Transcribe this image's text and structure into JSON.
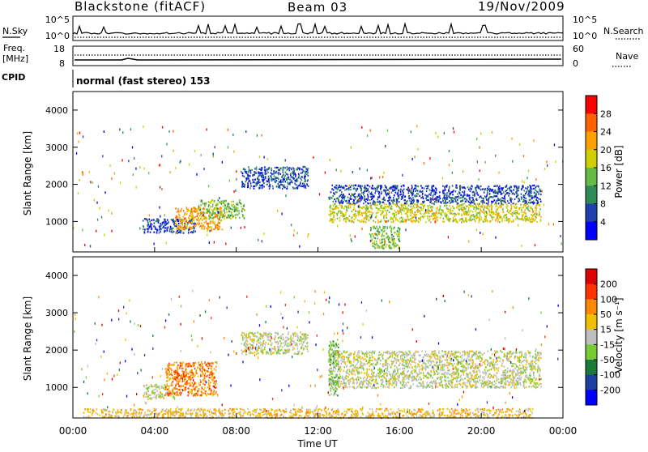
{
  "header": {
    "station": "Blackstone (fitACF)",
    "beam": "Beam 03",
    "date": "19/Nov/2009"
  },
  "top_panels": {
    "nsky_label": "N.Sky",
    "nsky_ticks": [
      "10^5",
      "10^0"
    ],
    "nsearch_label": "N.Search",
    "nsearch_ticks": [
      "10^5",
      "10^0"
    ],
    "freq_label": "Freq.",
    "freq_unit": "[MHz]",
    "freq_ticks": [
      "18",
      "8"
    ],
    "nave_label": "Nave",
    "nave_ticks": [
      "60",
      "0"
    ],
    "cpid_label": "CPID",
    "cpid_text": "normal (fast stereo) 153"
  },
  "chart_data": [
    {
      "type": "heatmap",
      "name": "power",
      "ylabel": "Slant Range [km]",
      "yticks": [
        "4000",
        "3000",
        "2000",
        "1000"
      ],
      "ylim": [
        180,
        4500
      ],
      "xlim": [
        0,
        24
      ],
      "colorbar_label": "Power [dB]",
      "colorbar_ticks": [
        "28",
        "24",
        "20",
        "16",
        "12",
        "8",
        "4"
      ],
      "colors": [
        "#0000ff",
        "#2040b0",
        "#2e8b57",
        "#66bb44",
        "#d0d000",
        "#ffa000",
        "#ff6000",
        "#ff0000"
      ],
      "regions": [
        {
          "x": [
            3.4,
            6.0
          ],
          "y": [
            700,
            1100
          ],
          "level": 1
        },
        {
          "x": [
            5.0,
            7.3
          ],
          "y": [
            800,
            1400
          ],
          "level": 5
        },
        {
          "x": [
            6.2,
            8.4
          ],
          "y": [
            1100,
            1600
          ],
          "level": 3
        },
        {
          "x": [
            8.2,
            11.5
          ],
          "y": [
            1900,
            2500
          ],
          "level": 1
        },
        {
          "x": [
            12.5,
            22.9
          ],
          "y": [
            1000,
            1500
          ],
          "level": 4
        },
        {
          "x": [
            12.5,
            22.9
          ],
          "y": [
            1500,
            2000
          ],
          "level": 1
        },
        {
          "x": [
            14.5,
            16.0
          ],
          "y": [
            300,
            900
          ],
          "level": 3
        }
      ]
    },
    {
      "type": "heatmap",
      "name": "velocity",
      "ylabel": "Slant Range [km]",
      "yticks": [
        "4000",
        "3000",
        "2000",
        "1000"
      ],
      "ylim": [
        180,
        4500
      ],
      "xlim": [
        0,
        24
      ],
      "colorbar_label": "Velocity [m s⁻¹]",
      "colorbar_ticks": [
        "200",
        "100",
        "50",
        "15",
        "-15",
        "-50",
        "-100",
        "-200"
      ],
      "colors": [
        "#0000ff",
        "#2040a0",
        "#1a7a3a",
        "#77cc33",
        "#bebebe",
        "#f0c000",
        "#ff8800",
        "#ff3300",
        "#dd0000"
      ],
      "regions": [
        {
          "x": [
            3.4,
            5.0
          ],
          "y": [
            700,
            1100
          ],
          "level": 4
        },
        {
          "x": [
            4.5,
            7.0
          ],
          "y": [
            800,
            1700
          ],
          "level": 6
        },
        {
          "x": [
            8.2,
            11.5
          ],
          "y": [
            1900,
            2500
          ],
          "level": 4
        },
        {
          "x": [
            12.5,
            22.9
          ],
          "y": [
            1000,
            2000
          ],
          "level": 4
        },
        {
          "x": [
            12.5,
            13.0
          ],
          "y": [
            800,
            2300
          ],
          "level": 3
        },
        {
          "x": [
            0.5,
            22.5
          ],
          "y": [
            200,
            450
          ],
          "level": 5
        }
      ]
    }
  ],
  "xaxis": {
    "ticks": [
      "00:00",
      "04:00",
      "08:00",
      "12:00",
      "16:00",
      "20:00",
      "00:00"
    ],
    "label": "Time UT"
  }
}
